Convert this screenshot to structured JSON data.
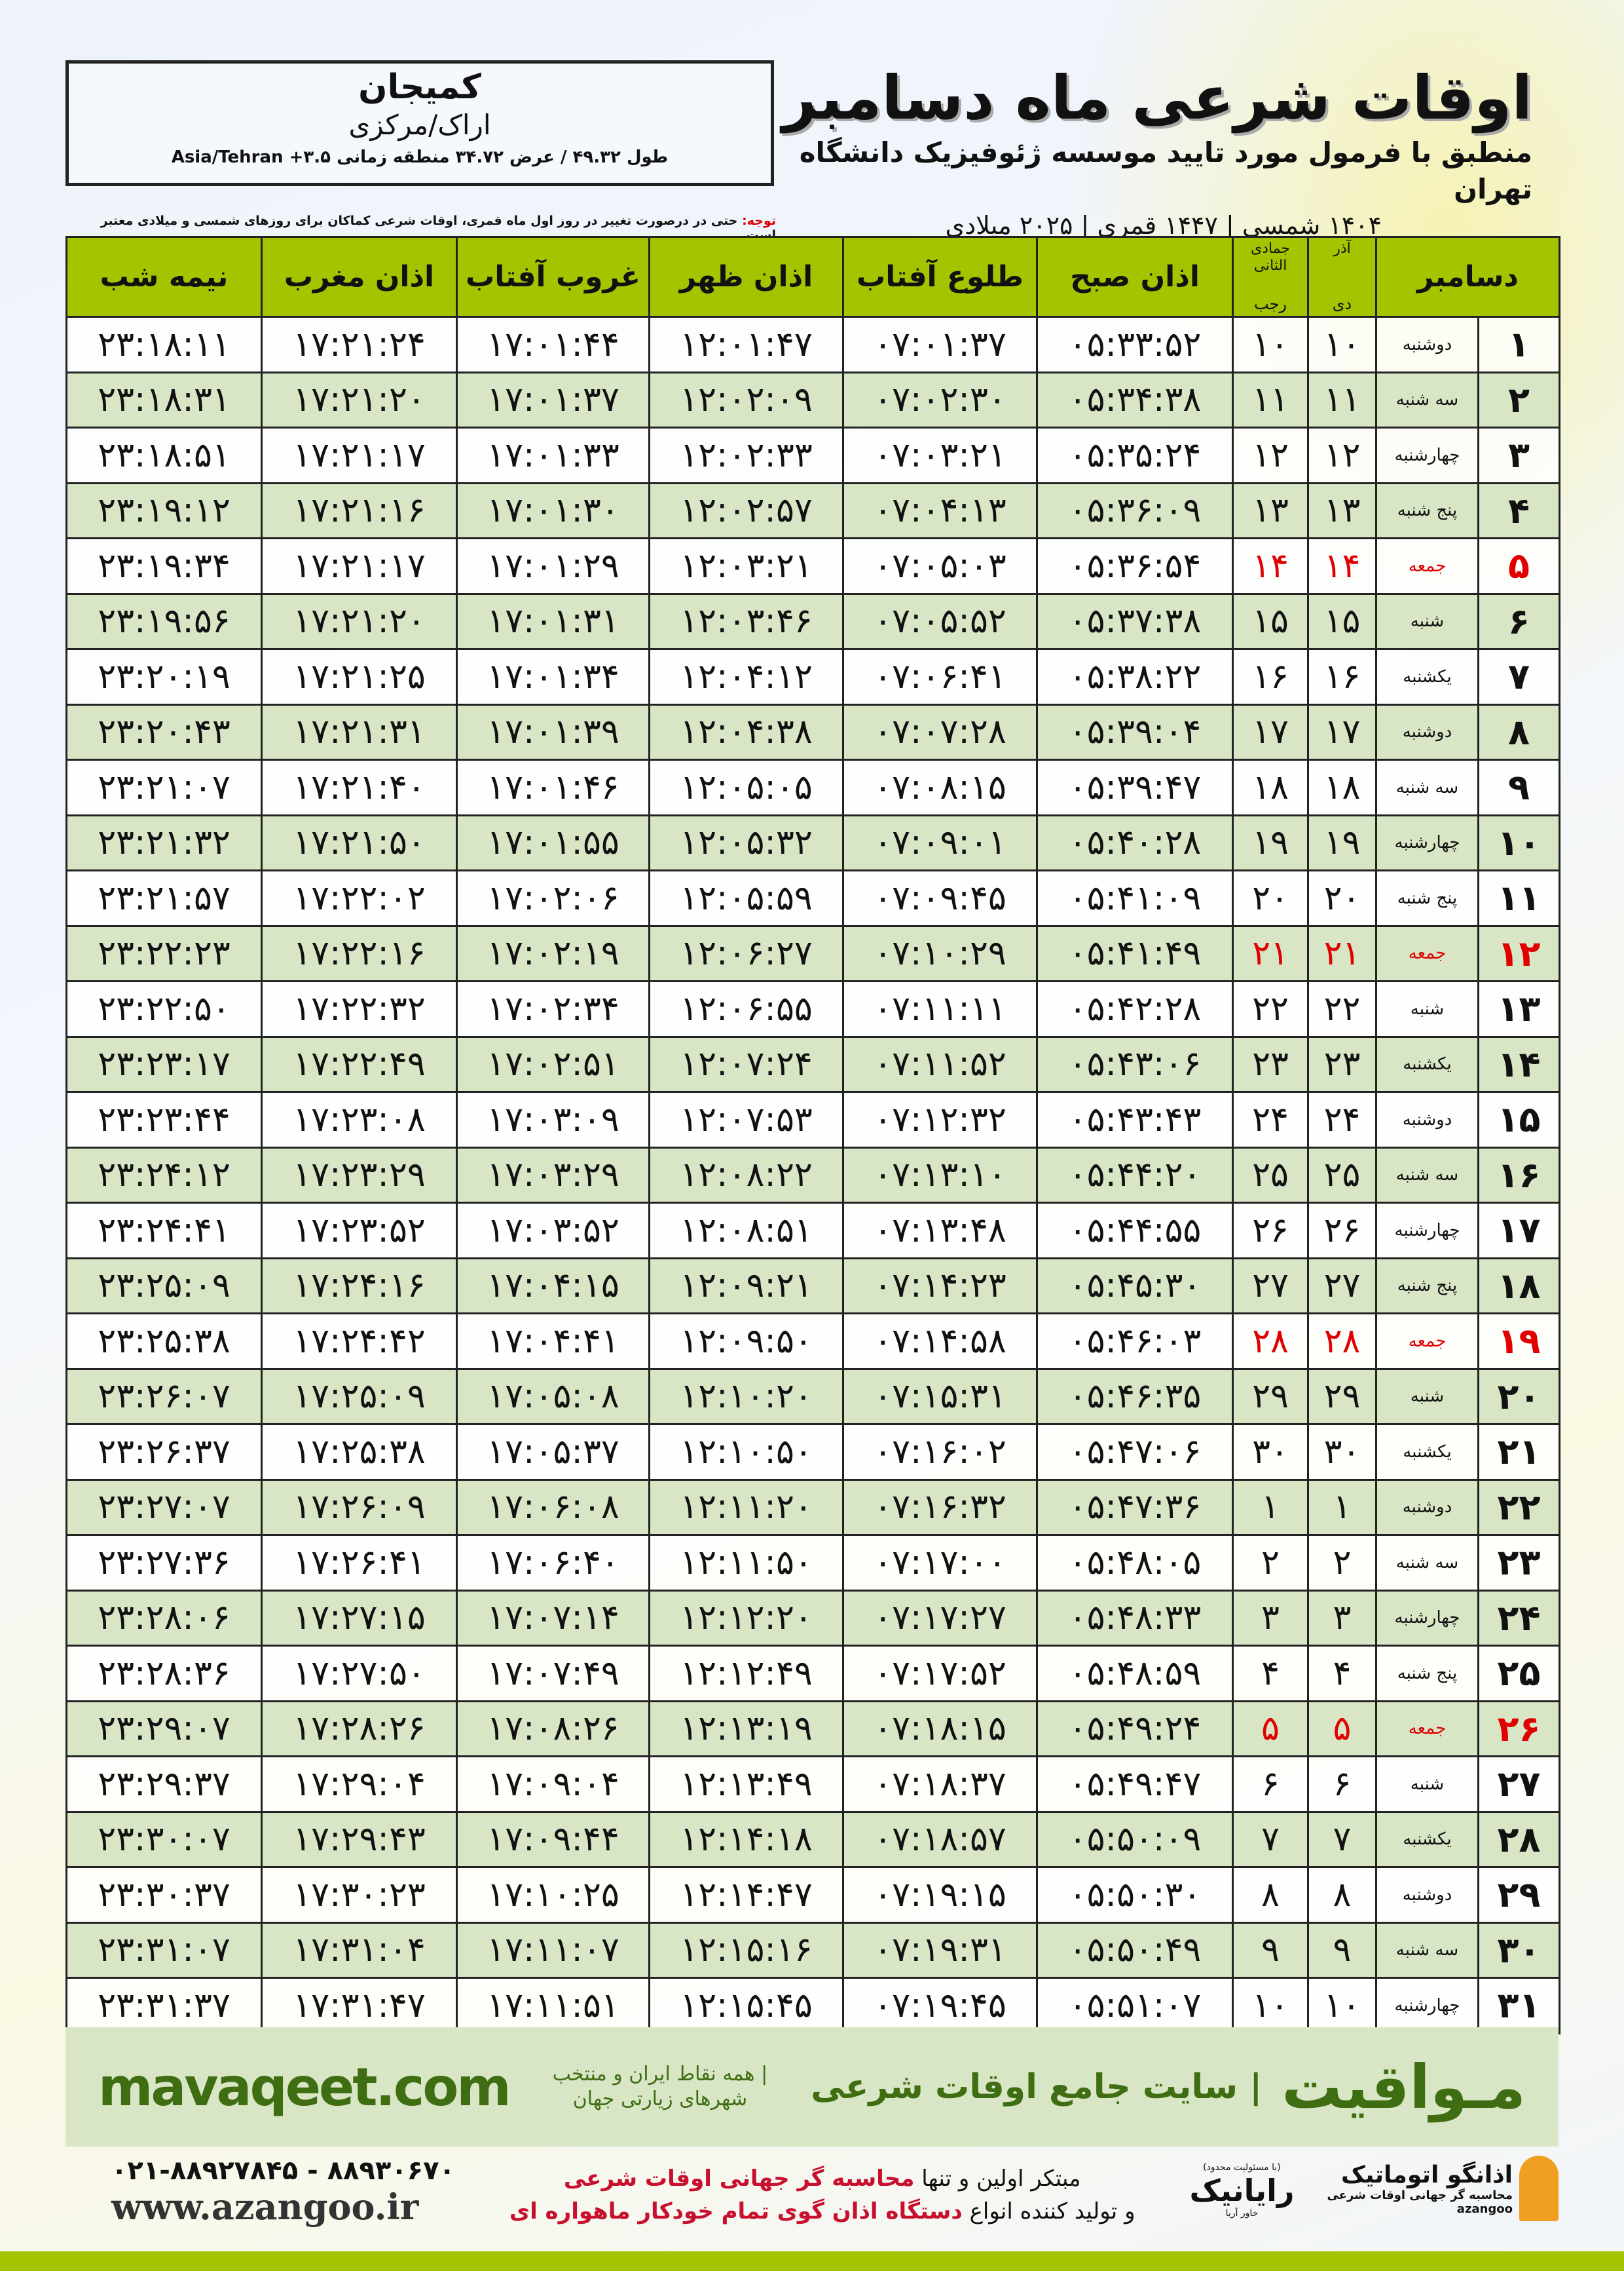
{
  "location": {
    "city": "کمیجان",
    "province": "اراک/مرکزی",
    "coords": "طول ۴۹.۳۲ / عرض ۳۴.۷۲ منطقه زمانی ۳.۵+ Asia/Tehran"
  },
  "header": {
    "title": "اوقات شرعی ماه دسامبر",
    "subtitle": "منطبق با فرمول مورد تایید موسسه ژئوفیزیک دانشگاه تهران",
    "years": "۱۴۰۴ شمسی | ۱۴۴۷ قمری | ۲۰۲۵ میلادی"
  },
  "note": {
    "label": "توجه:",
    "text": " حتی در درصورت تغییر در روز اول ماه قمری، اوقات شرعی کماکان برای روزهای شمسی و میلادی معتبر است."
  },
  "colors": {
    "header_green": "#a5c400",
    "row_green": "#d8e6c6",
    "friday_red": "#e00000",
    "brand_green": "#3f6d12"
  },
  "table": {
    "columns": {
      "midnight": "نیمه شب",
      "maghrib": "اذان مغرب",
      "sunset": "غروب آفتاب",
      "dhuhr": "اذان ظهر",
      "sunrise": "طلوع آفتاب",
      "fajr": "اذان صبح",
      "hijri_top": "جمادی الثانی",
      "hijri_bottom": "رجب",
      "shamsi_top": "آذر",
      "shamsi_bottom": "دی",
      "month": "دسامبر"
    },
    "rows": [
      [
        "۱",
        "دوشنبه",
        "۱۰",
        "۱۰",
        "۰۵:۳۳:۵۲",
        "۰۷:۰۱:۳۷",
        "۱۲:۰۱:۴۷",
        "۱۷:۰۱:۴۴",
        "۱۷:۲۱:۲۴",
        "۲۳:۱۸:۱۱"
      ],
      [
        "۲",
        "سه شنبه",
        "۱۱",
        "۱۱",
        "۰۵:۳۴:۳۸",
        "۰۷:۰۲:۳۰",
        "۱۲:۰۲:۰۹",
        "۱۷:۰۱:۳۷",
        "۱۷:۲۱:۲۰",
        "۲۳:۱۸:۳۱"
      ],
      [
        "۳",
        "چهارشنبه",
        "۱۲",
        "۱۲",
        "۰۵:۳۵:۲۴",
        "۰۷:۰۳:۲۱",
        "۱۲:۰۲:۳۳",
        "۱۷:۰۱:۳۳",
        "۱۷:۲۱:۱۷",
        "۲۳:۱۸:۵۱"
      ],
      [
        "۴",
        "پنج شنبه",
        "۱۳",
        "۱۳",
        "۰۵:۳۶:۰۹",
        "۰۷:۰۴:۱۳",
        "۱۲:۰۲:۵۷",
        "۱۷:۰۱:۳۰",
        "۱۷:۲۱:۱۶",
        "۲۳:۱۹:۱۲"
      ],
      [
        "۵",
        "جمعه",
        "۱۴",
        "۱۴",
        "۰۵:۳۶:۵۴",
        "۰۷:۰۵:۰۳",
        "۱۲:۰۳:۲۱",
        "۱۷:۰۱:۲۹",
        "۱۷:۲۱:۱۷",
        "۲۳:۱۹:۳۴"
      ],
      [
        "۶",
        "شنبه",
        "۱۵",
        "۱۵",
        "۰۵:۳۷:۳۸",
        "۰۷:۰۵:۵۲",
        "۱۲:۰۳:۴۶",
        "۱۷:۰۱:۳۱",
        "۱۷:۲۱:۲۰",
        "۲۳:۱۹:۵۶"
      ],
      [
        "۷",
        "یکشنبه",
        "۱۶",
        "۱۶",
        "۰۵:۳۸:۲۲",
        "۰۷:۰۶:۴۱",
        "۱۲:۰۴:۱۲",
        "۱۷:۰۱:۳۴",
        "۱۷:۲۱:۲۵",
        "۲۳:۲۰:۱۹"
      ],
      [
        "۸",
        "دوشنبه",
        "۱۷",
        "۱۷",
        "۰۵:۳۹:۰۴",
        "۰۷:۰۷:۲۸",
        "۱۲:۰۴:۳۸",
        "۱۷:۰۱:۳۹",
        "۱۷:۲۱:۳۱",
        "۲۳:۲۰:۴۳"
      ],
      [
        "۹",
        "سه شنبه",
        "۱۸",
        "۱۸",
        "۰۵:۳۹:۴۷",
        "۰۷:۰۸:۱۵",
        "۱۲:۰۵:۰۵",
        "۱۷:۰۱:۴۶",
        "۱۷:۲۱:۴۰",
        "۲۳:۲۱:۰۷"
      ],
      [
        "۱۰",
        "چهارشنبه",
        "۱۹",
        "۱۹",
        "۰۵:۴۰:۲۸",
        "۰۷:۰۹:۰۱",
        "۱۲:۰۵:۳۲",
        "۱۷:۰۱:۵۵",
        "۱۷:۲۱:۵۰",
        "۲۳:۲۱:۳۲"
      ],
      [
        "۱۱",
        "پنج شنبه",
        "۲۰",
        "۲۰",
        "۰۵:۴۱:۰۹",
        "۰۷:۰۹:۴۵",
        "۱۲:۰۵:۵۹",
        "۱۷:۰۲:۰۶",
        "۱۷:۲۲:۰۲",
        "۲۳:۲۱:۵۷"
      ],
      [
        "۱۲",
        "جمعه",
        "۲۱",
        "۲۱",
        "۰۵:۴۱:۴۹",
        "۰۷:۱۰:۲۹",
        "۱۲:۰۶:۲۷",
        "۱۷:۰۲:۱۹",
        "۱۷:۲۲:۱۶",
        "۲۳:۲۲:۲۳"
      ],
      [
        "۱۳",
        "شنبه",
        "۲۲",
        "۲۲",
        "۰۵:۴۲:۲۸",
        "۰۷:۱۱:۱۱",
        "۱۲:۰۶:۵۵",
        "۱۷:۰۲:۳۴",
        "۱۷:۲۲:۳۲",
        "۲۳:۲۲:۵۰"
      ],
      [
        "۱۴",
        "یکشنبه",
        "۲۳",
        "۲۳",
        "۰۵:۴۳:۰۶",
        "۰۷:۱۱:۵۲",
        "۱۲:۰۷:۲۴",
        "۱۷:۰۲:۵۱",
        "۱۷:۲۲:۴۹",
        "۲۳:۲۳:۱۷"
      ],
      [
        "۱۵",
        "دوشنبه",
        "۲۴",
        "۲۴",
        "۰۵:۴۳:۴۳",
        "۰۷:۱۲:۳۲",
        "۱۲:۰۷:۵۳",
        "۱۷:۰۳:۰۹",
        "۱۷:۲۳:۰۸",
        "۲۳:۲۳:۴۴"
      ],
      [
        "۱۶",
        "سه شنبه",
        "۲۵",
        "۲۵",
        "۰۵:۴۴:۲۰",
        "۰۷:۱۳:۱۰",
        "۱۲:۰۸:۲۲",
        "۱۷:۰۳:۲۹",
        "۱۷:۲۳:۲۹",
        "۲۳:۲۴:۱۲"
      ],
      [
        "۱۷",
        "چهارشنبه",
        "۲۶",
        "۲۶",
        "۰۵:۴۴:۵۵",
        "۰۷:۱۳:۴۸",
        "۱۲:۰۸:۵۱",
        "۱۷:۰۳:۵۲",
        "۱۷:۲۳:۵۲",
        "۲۳:۲۴:۴۱"
      ],
      [
        "۱۸",
        "پنج شنبه",
        "۲۷",
        "۲۷",
        "۰۵:۴۵:۳۰",
        "۰۷:۱۴:۲۳",
        "۱۲:۰۹:۲۱",
        "۱۷:۰۴:۱۵",
        "۱۷:۲۴:۱۶",
        "۲۳:۲۵:۰۹"
      ],
      [
        "۱۹",
        "جمعه",
        "۲۸",
        "۲۸",
        "۰۵:۴۶:۰۳",
        "۰۷:۱۴:۵۸",
        "۱۲:۰۹:۵۰",
        "۱۷:۰۴:۴۱",
        "۱۷:۲۴:۴۲",
        "۲۳:۲۵:۳۸"
      ],
      [
        "۲۰",
        "شنبه",
        "۲۹",
        "۲۹",
        "۰۵:۴۶:۳۵",
        "۰۷:۱۵:۳۱",
        "۱۲:۱۰:۲۰",
        "۱۷:۰۵:۰۸",
        "۱۷:۲۵:۰۹",
        "۲۳:۲۶:۰۷"
      ],
      [
        "۲۱",
        "یکشنبه",
        "۳۰",
        "۳۰",
        "۰۵:۴۷:۰۶",
        "۰۷:۱۶:۰۲",
        "۱۲:۱۰:۵۰",
        "۱۷:۰۵:۳۷",
        "۱۷:۲۵:۳۸",
        "۲۳:۲۶:۳۷"
      ],
      [
        "۲۲",
        "دوشنبه",
        "۱",
        "۱",
        "۰۵:۴۷:۳۶",
        "۰۷:۱۶:۳۲",
        "۱۲:۱۱:۲۰",
        "۱۷:۰۶:۰۸",
        "۱۷:۲۶:۰۹",
        "۲۳:۲۷:۰۷"
      ],
      [
        "۲۳",
        "سه شنبه",
        "۲",
        "۲",
        "۰۵:۴۸:۰۵",
        "۰۷:۱۷:۰۰",
        "۱۲:۱۱:۵۰",
        "۱۷:۰۶:۴۰",
        "۱۷:۲۶:۴۱",
        "۲۳:۲۷:۳۶"
      ],
      [
        "۲۴",
        "چهارشنبه",
        "۳",
        "۳",
        "۰۵:۴۸:۳۳",
        "۰۷:۱۷:۲۷",
        "۱۲:۱۲:۲۰",
        "۱۷:۰۷:۱۴",
        "۱۷:۲۷:۱۵",
        "۲۳:۲۸:۰۶"
      ],
      [
        "۲۵",
        "پنج شنبه",
        "۴",
        "۴",
        "۰۵:۴۸:۵۹",
        "۰۷:۱۷:۵۲",
        "۱۲:۱۲:۴۹",
        "۱۷:۰۷:۴۹",
        "۱۷:۲۷:۵۰",
        "۲۳:۲۸:۳۶"
      ],
      [
        "۲۶",
        "جمعه",
        "۵",
        "۵",
        "۰۵:۴۹:۲۴",
        "۰۷:۱۸:۱۵",
        "۱۲:۱۳:۱۹",
        "۱۷:۰۸:۲۶",
        "۱۷:۲۸:۲۶",
        "۲۳:۲۹:۰۷"
      ],
      [
        "۲۷",
        "شنبه",
        "۶",
        "۶",
        "۰۵:۴۹:۴۷",
        "۰۷:۱۸:۳۷",
        "۱۲:۱۳:۴۹",
        "۱۷:۰۹:۰۴",
        "۱۷:۲۹:۰۴",
        "۲۳:۲۹:۳۷"
      ],
      [
        "۲۸",
        "یکشنبه",
        "۷",
        "۷",
        "۰۵:۵۰:۰۹",
        "۰۷:۱۸:۵۷",
        "۱۲:۱۴:۱۸",
        "۱۷:۰۹:۴۴",
        "۱۷:۲۹:۴۳",
        "۲۳:۳۰:۰۷"
      ],
      [
        "۲۹",
        "دوشنبه",
        "۸",
        "۸",
        "۰۵:۵۰:۳۰",
        "۰۷:۱۹:۱۵",
        "۱۲:۱۴:۴۷",
        "۱۷:۱۰:۲۵",
        "۱۷:۳۰:۲۳",
        "۲۳:۳۰:۳۷"
      ],
      [
        "۳۰",
        "سه شنبه",
        "۹",
        "۹",
        "۰۵:۵۰:۴۹",
        "۰۷:۱۹:۳۱",
        "۱۲:۱۵:۱۶",
        "۱۷:۱۱:۰۷",
        "۱۷:۳۱:۰۴",
        "۲۳:۳۱:۰۷"
      ],
      [
        "۳۱",
        "چهارشنبه",
        "۱۰",
        "۱۰",
        "۰۵:۵۱:۰۷",
        "۰۷:۱۹:۴۵",
        "۱۲:۱۵:۴۵",
        "۱۷:۱۱:۵۱",
        "۱۷:۳۱:۴۷",
        "۲۳:۳۱:۳۷"
      ]
    ]
  },
  "banner": {
    "logo": "مـواقیت",
    "tagline": "| سایت جامع اوقات شرعی",
    "subtag": "| همه نقاط ایران و منتخب شهرهای زیارتی جهان",
    "site": "mavaqeet.com"
  },
  "footer": {
    "phone": "۰۲۱-۸۸۹۲۷۸۴۵ - ۸۸۹۳۰۶۷۰",
    "www": "www.azangoo.ir",
    "promo1_a": "مبتکر اولین و تنها ",
    "promo1_b": "محاسبه گر جهانی اوقات شرعی",
    "promo2_a": "و تولید کننده انواع ",
    "promo2_b": "دستگاه اذان گوی تمام خودکار ماهواره ای",
    "rayanik": "رایانیک",
    "rayanik_sub": "خاور آریا",
    "rayanik_note": "(با مسئولیت محدود)",
    "azangoo": "اذانگو اتوماتیک",
    "azangoo_sub": "محاسبه گر جهانی اوقات شرعی",
    "azangoo_en": "azangoo"
  }
}
